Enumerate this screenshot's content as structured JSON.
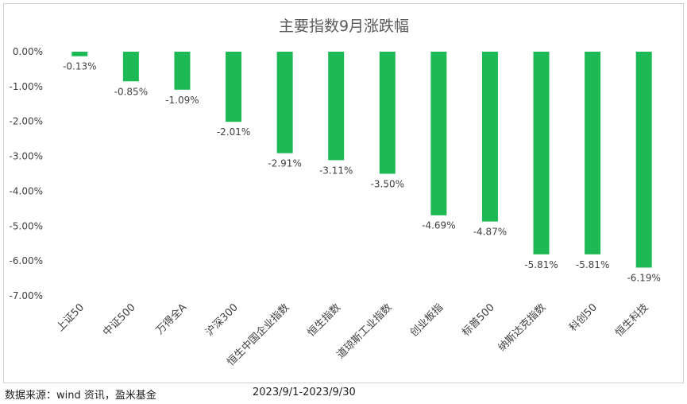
{
  "chart_data": {
    "type": "bar",
    "title": "主要指数9月涨跌幅",
    "xlabel": "",
    "ylabel": "",
    "ylim": [
      -7.0,
      0.0
    ],
    "y_ticks": [
      "0.00%",
      "-1.00%",
      "-2.00%",
      "-3.00%",
      "-4.00%",
      "-5.00%",
      "-6.00%",
      "-7.00%"
    ],
    "grid": false,
    "legend": "none",
    "bar_color": "#1db954",
    "categories": [
      "上证50",
      "中证500",
      "万得全A",
      "沪深300",
      "恒生中国企业指数",
      "恒生指数",
      "道琼斯工业指数",
      "创业板指",
      "标普500",
      "纳斯达克指数",
      "科创50",
      "恒生科技"
    ],
    "values": [
      -0.13,
      -0.85,
      -1.09,
      -2.01,
      -2.91,
      -3.11,
      -3.5,
      -4.69,
      -4.87,
      -5.81,
      -5.81,
      -6.19
    ],
    "data_labels": [
      "-0.13%",
      "-0.85%",
      "-1.09%",
      "-2.01%",
      "-2.91%",
      "-3.11%",
      "-3.50%",
      "-4.69%",
      "-4.87%",
      "-5.81%",
      "-5.81%",
      "-6.19%"
    ]
  },
  "footer": {
    "source": "数据来源：wind 资讯，盈米基金",
    "date_range": "2023/9/1-2023/9/30"
  }
}
